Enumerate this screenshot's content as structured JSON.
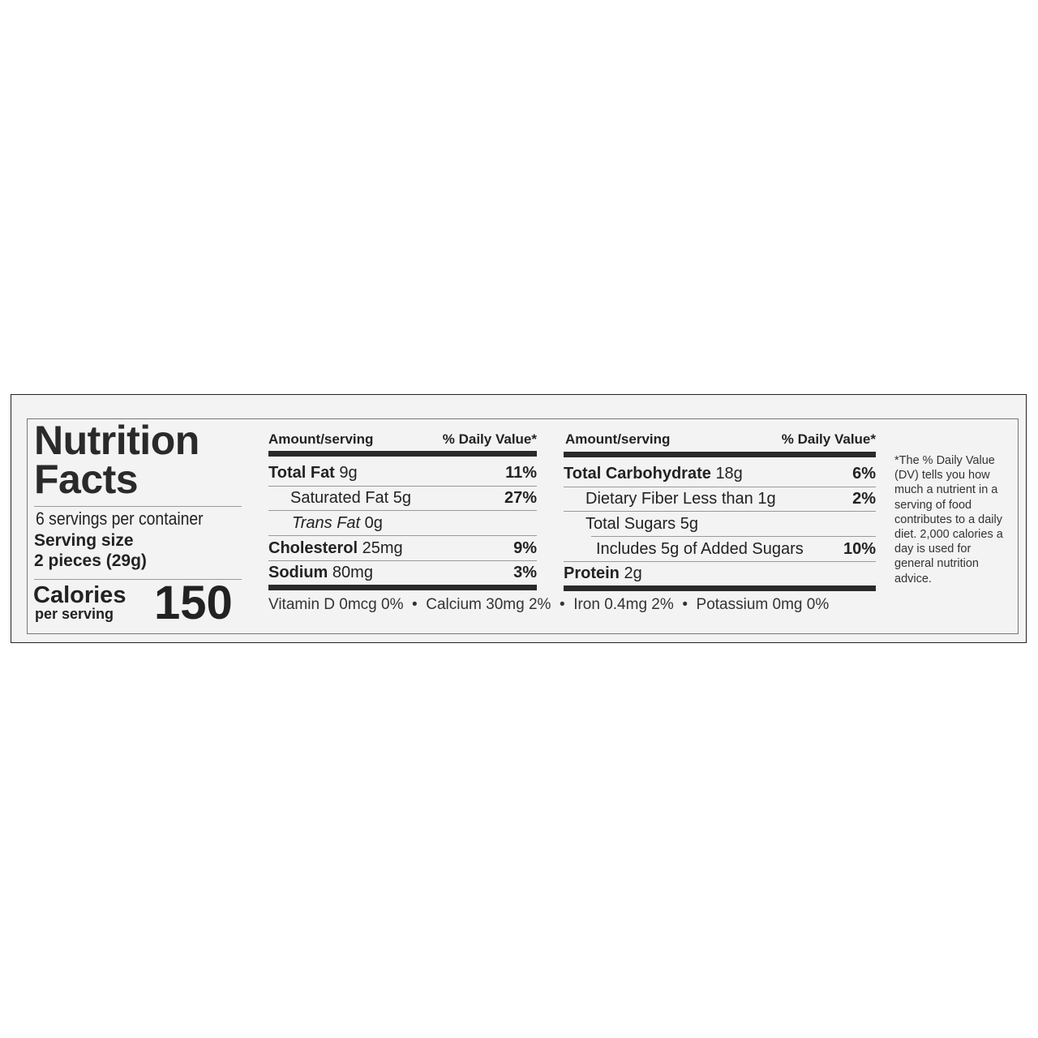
{
  "label": {
    "title_line1": "Nutrition",
    "title_line2": "Facts",
    "servings_per_container": "6 servings per container",
    "serving_size_label": "Serving size",
    "serving_size_value": "2 pieces (29g)",
    "calories_label": "Calories",
    "calories_sub": "per serving",
    "calories_value": "150",
    "left_table": {
      "header_amount": "Amount/serving",
      "header_dv": "% Daily Value*",
      "rows": [
        {
          "name": "Total Fat",
          "amount": "9g",
          "dv": "11%"
        },
        {
          "name": "Saturated Fat",
          "amount": "5g",
          "dv": "27%"
        },
        {
          "name": "Trans Fat",
          "amount": "0g",
          "dv": ""
        },
        {
          "name": "Cholesterol",
          "amount": "25mg",
          "dv": "9%"
        },
        {
          "name": "Sodium",
          "amount": "80mg",
          "dv": "3%"
        }
      ]
    },
    "right_table": {
      "header_amount": "Amount/serving",
      "header_dv": "% Daily Value*",
      "rows": [
        {
          "name": "Total Carbohydrate",
          "amount": "18g",
          "dv": "6%"
        },
        {
          "name": "Dietary Fiber",
          "amount": "Less than 1g",
          "dv": "2%"
        },
        {
          "name": "Total Sugars",
          "amount": "5g",
          "dv": ""
        },
        {
          "name": "Includes 5g of Added Sugars",
          "amount": "",
          "dv": "10%"
        },
        {
          "name": "Protein",
          "amount": "2g",
          "dv": ""
        }
      ]
    },
    "vitamins": "Vitamin D 0mcg 0%  •  Calcium 30mg 2%  •  Iron 0.4mg 2%  •  Potassium 0mg 0%",
    "footnote": "*The % Daily Value (DV) tells you how much a nutrient in a serving of food contributes to a daily diet. 2,000 calories a day is used for general nutrition advice."
  }
}
